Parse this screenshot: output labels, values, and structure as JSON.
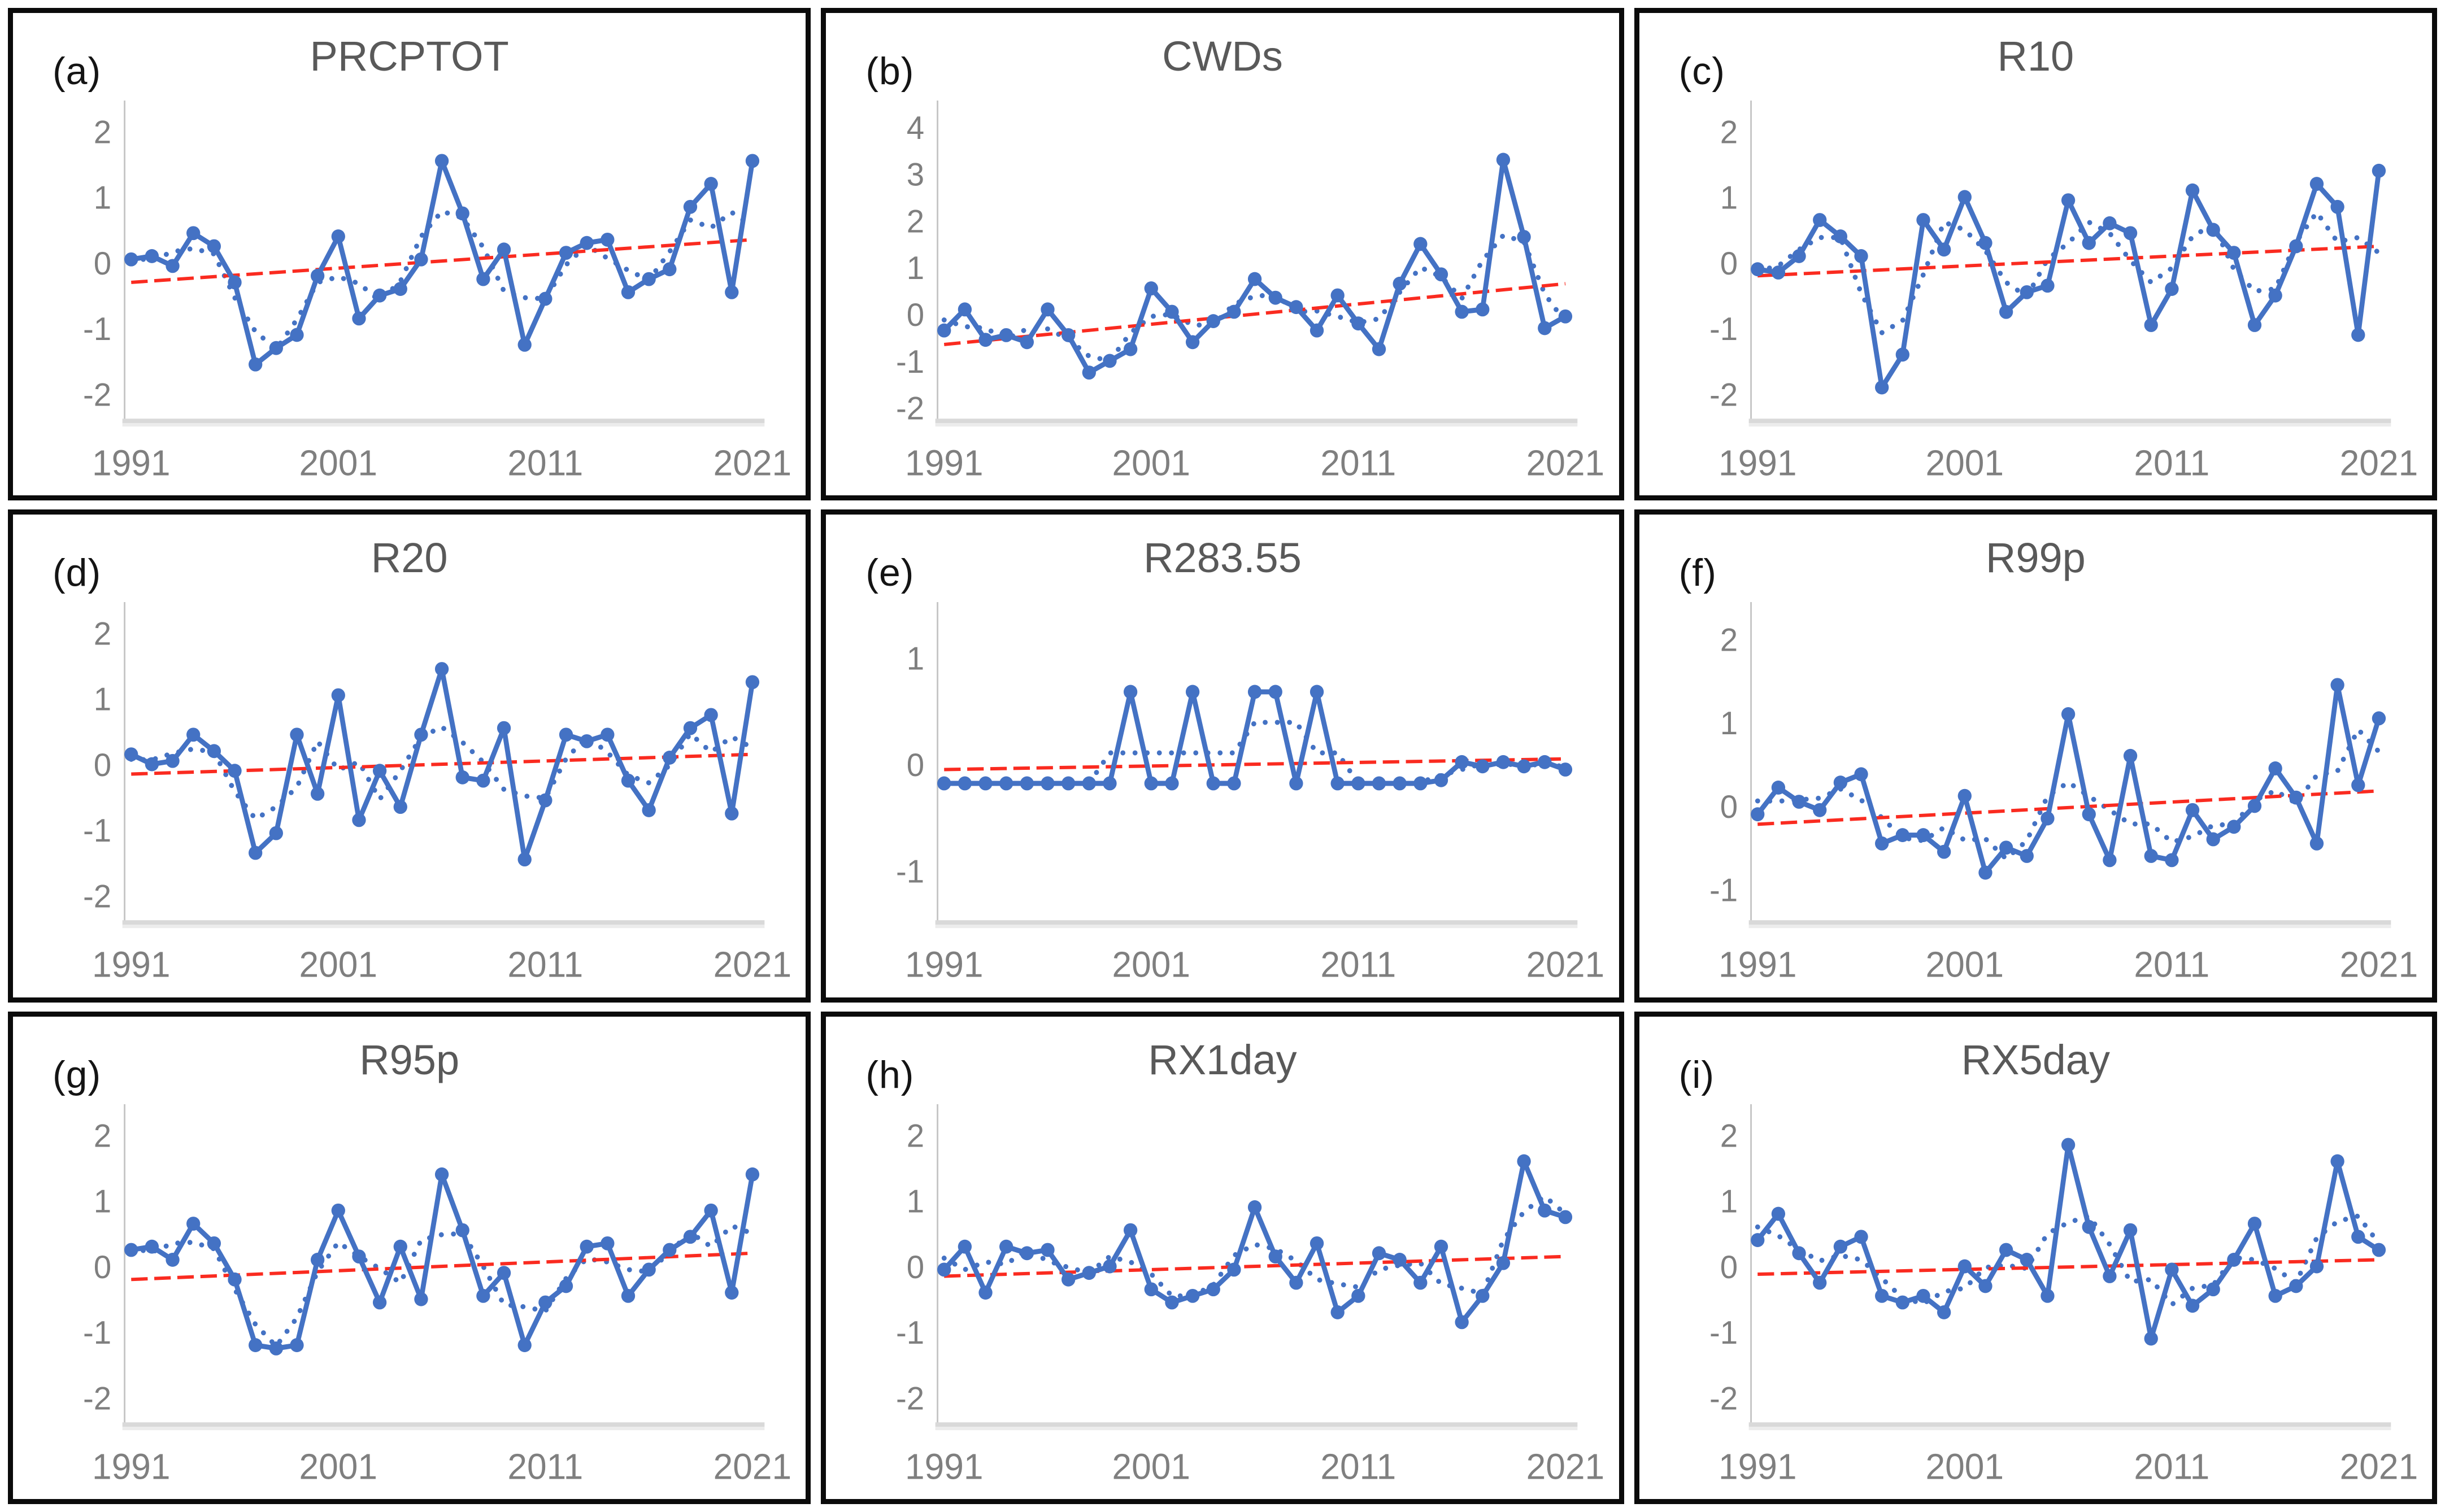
{
  "figure": {
    "years": [
      1991,
      1992,
      1993,
      1994,
      1995,
      1996,
      1997,
      1998,
      1999,
      2000,
      2001,
      2002,
      2003,
      2004,
      2005,
      2006,
      2007,
      2008,
      2009,
      2010,
      2011,
      2012,
      2013,
      2014,
      2015,
      2016,
      2017,
      2018,
      2019,
      2020,
      2021
    ],
    "x_ticks": [
      1991,
      2001,
      2011,
      2021
    ],
    "colors": {
      "series_blue": "#4472C4",
      "trend_red": "#FA2B20",
      "axis_gray": "#C6C6C6",
      "baseline_gray": "#D9D9D9",
      "baseline_shadow": "#ECECEC",
      "title_gray": "#595959",
      "tick_label_gray": "#7F7F7F",
      "panel_label_black": "#141414",
      "panel_border_black": "#0B0B0B",
      "background_white": "#FFFFFF"
    }
  },
  "chart_data": [
    {
      "id": "a",
      "panel_label": "(a)",
      "title": "PRCPTOT",
      "type": "line",
      "grid": false,
      "legend": "none",
      "xlabel": "",
      "ylabel": "",
      "y_ticks": [
        2,
        1,
        0,
        -1,
        -2
      ],
      "ylim": [
        -2.35,
        2.35
      ],
      "values": [
        0.05,
        0.1,
        -0.05,
        0.45,
        0.25,
        -0.3,
        -1.55,
        -1.3,
        -1.1,
        -0.2,
        0.4,
        -0.85,
        -0.5,
        -0.4,
        0.05,
        1.55,
        0.75,
        -0.25,
        0.2,
        -1.25,
        -0.55,
        0.15,
        0.3,
        0.35,
        -0.45,
        -0.25,
        -0.1,
        0.85,
        1.2,
        -0.45,
        1.55
      ],
      "trend": {
        "start": -0.3,
        "end": 0.35
      },
      "smoothed": {
        "type": "moving_average",
        "window": 3,
        "style": "dotted"
      }
    },
    {
      "id": "b",
      "panel_label": "(b)",
      "title": "CWDs",
      "type": "line",
      "grid": false,
      "legend": "none",
      "xlabel": "",
      "ylabel": "",
      "y_ticks": [
        4,
        3,
        2,
        1,
        0,
        -1,
        -2
      ],
      "ylim": [
        -2.2,
        4.4
      ],
      "values": [
        -0.35,
        0.1,
        -0.55,
        -0.45,
        -0.6,
        0.1,
        -0.45,
        -1.25,
        -1.0,
        -0.75,
        0.55,
        0.05,
        -0.6,
        -0.15,
        0.05,
        0.75,
        0.35,
        0.15,
        -0.35,
        0.4,
        -0.2,
        -0.75,
        0.65,
        1.5,
        0.85,
        0.05,
        0.1,
        3.3,
        1.65,
        -0.3,
        -0.05
      ],
      "trend": {
        "start": -0.65,
        "end": 0.65
      },
      "smoothed": {
        "type": "moving_average",
        "window": 3,
        "style": "dotted"
      }
    },
    {
      "id": "c",
      "panel_label": "(c)",
      "title": "R10",
      "type": "line",
      "grid": false,
      "legend": "none",
      "xlabel": "",
      "ylabel": "",
      "y_ticks": [
        2,
        1,
        0,
        -1,
        -2
      ],
      "ylim": [
        -2.35,
        2.35
      ],
      "values": [
        -0.1,
        -0.15,
        0.1,
        0.65,
        0.4,
        0.1,
        -1.9,
        -1.4,
        0.65,
        0.2,
        1.0,
        0.3,
        -0.75,
        -0.45,
        -0.35,
        0.95,
        0.3,
        0.6,
        0.45,
        -0.95,
        -0.4,
        1.1,
        0.5,
        0.15,
        -0.95,
        -0.5,
        0.25,
        1.2,
        0.85,
        -1.1,
        1.4
      ],
      "trend": {
        "start": -0.2,
        "end": 0.25
      },
      "smoothed": {
        "type": "moving_average",
        "window": 3,
        "style": "dotted"
      }
    },
    {
      "id": "d",
      "panel_label": "(d)",
      "title": "R20",
      "type": "line",
      "grid": false,
      "legend": "none",
      "xlabel": "",
      "ylabel": "",
      "y_ticks": [
        2,
        1,
        0,
        -1,
        -2
      ],
      "ylim": [
        -2.35,
        2.35
      ],
      "values": [
        0.15,
        0.0,
        0.05,
        0.45,
        0.2,
        -0.1,
        -1.35,
        -1.05,
        0.45,
        -0.45,
        1.05,
        -0.85,
        -0.1,
        -0.65,
        0.45,
        1.45,
        -0.2,
        -0.25,
        0.55,
        -1.45,
        -0.55,
        0.45,
        0.35,
        0.45,
        -0.25,
        -0.7,
        0.1,
        0.55,
        0.75,
        -0.75,
        1.25
      ],
      "trend": {
        "start": -0.15,
        "end": 0.15
      },
      "smoothed": {
        "type": "moving_average",
        "window": 3,
        "style": "dotted"
      }
    },
    {
      "id": "e",
      "panel_label": "(e)",
      "title": "R283.55",
      "type": "line",
      "grid": false,
      "legend": "none",
      "xlabel": "",
      "ylabel": "",
      "y_ticks": [
        1,
        0,
        -1
      ],
      "ylim": [
        -1.45,
        1.45
      ],
      "values": [
        -0.18,
        -0.18,
        -0.18,
        -0.18,
        -0.18,
        -0.18,
        -0.18,
        -0.18,
        -0.18,
        0.68,
        -0.18,
        -0.18,
        0.68,
        -0.18,
        -0.18,
        0.68,
        0.68,
        -0.18,
        0.68,
        -0.18,
        -0.18,
        -0.18,
        -0.18,
        -0.18,
        -0.15,
        0.02,
        -0.02,
        0.02,
        -0.02,
        0.02,
        -0.05
      ],
      "trend": {
        "start": -0.05,
        "end": 0.05
      },
      "smoothed": {
        "type": "moving_average",
        "window": 3,
        "style": "dotted"
      }
    },
    {
      "id": "f",
      "panel_label": "(f)",
      "title": "R99p",
      "type": "line",
      "grid": false,
      "legend": "none",
      "xlabel": "",
      "ylabel": "",
      "y_ticks": [
        2,
        1,
        0,
        -1
      ],
      "ylim": [
        -1.35,
        2.35
      ],
      "values": [
        -0.1,
        0.22,
        0.05,
        -0.05,
        0.28,
        0.38,
        -0.45,
        -0.35,
        -0.35,
        -0.55,
        0.12,
        -0.8,
        -0.5,
        -0.6,
        -0.15,
        1.1,
        -0.1,
        -0.65,
        0.6,
        -0.6,
        -0.65,
        -0.05,
        -0.4,
        -0.25,
        0.0,
        0.45,
        0.1,
        -0.45,
        1.45,
        0.25,
        1.05
      ],
      "trend": {
        "start": -0.22,
        "end": 0.18
      },
      "smoothed": {
        "type": "moving_average",
        "window": 3,
        "style": "dotted"
      }
    },
    {
      "id": "g",
      "panel_label": "(g)",
      "title": "R95p",
      "type": "line",
      "grid": false,
      "legend": "none",
      "xlabel": "",
      "ylabel": "",
      "y_ticks": [
        2,
        1,
        0,
        -1,
        -2
      ],
      "ylim": [
        -2.35,
        2.35
      ],
      "values": [
        0.25,
        0.3,
        0.1,
        0.65,
        0.35,
        -0.2,
        -1.2,
        -1.25,
        -1.2,
        0.1,
        0.85,
        0.15,
        -0.55,
        0.3,
        -0.5,
        1.4,
        0.55,
        -0.45,
        -0.1,
        -1.2,
        -0.55,
        -0.3,
        0.3,
        0.35,
        -0.45,
        -0.05,
        0.25,
        0.45,
        0.85,
        -0.4,
        1.4
      ],
      "trend": {
        "start": -0.2,
        "end": 0.2
      },
      "smoothed": {
        "type": "moving_average",
        "window": 3,
        "style": "dotted"
      }
    },
    {
      "id": "h",
      "panel_label": "(h)",
      "title": "RX1day",
      "type": "line",
      "grid": false,
      "legend": "none",
      "xlabel": "",
      "ylabel": "",
      "y_ticks": [
        2,
        1,
        0,
        -1,
        -2
      ],
      "ylim": [
        -2.35,
        2.35
      ],
      "values": [
        -0.05,
        0.3,
        -0.4,
        0.3,
        0.2,
        0.25,
        -0.2,
        -0.1,
        0.0,
        0.55,
        -0.35,
        -0.55,
        -0.45,
        -0.35,
        -0.05,
        0.9,
        0.15,
        -0.25,
        0.35,
        -0.7,
        -0.45,
        0.2,
        0.1,
        -0.25,
        0.3,
        -0.85,
        -0.45,
        0.05,
        1.6,
        0.85,
        0.75
      ],
      "trend": {
        "start": -0.15,
        "end": 0.15
      },
      "smoothed": {
        "type": "moving_average",
        "window": 3,
        "style": "dotted"
      }
    },
    {
      "id": "i",
      "panel_label": "(i)",
      "title": "RX5day",
      "type": "line",
      "grid": false,
      "legend": "none",
      "xlabel": "",
      "ylabel": "",
      "y_ticks": [
        2,
        1,
        0,
        -1,
        -2
      ],
      "ylim": [
        -2.35,
        2.35
      ],
      "values": [
        0.4,
        0.8,
        0.2,
        -0.25,
        0.3,
        0.45,
        -0.45,
        -0.55,
        -0.45,
        -0.7,
        0.0,
        -0.3,
        0.25,
        0.1,
        -0.45,
        1.85,
        0.6,
        -0.15,
        0.55,
        -1.1,
        -0.05,
        -0.6,
        -0.35,
        0.1,
        0.65,
        -0.45,
        -0.3,
        0.0,
        1.6,
        0.45,
        0.25
      ],
      "trend": {
        "start": -0.12,
        "end": 0.1
      },
      "smoothed": {
        "type": "moving_average",
        "window": 3,
        "style": "dotted"
      }
    }
  ]
}
